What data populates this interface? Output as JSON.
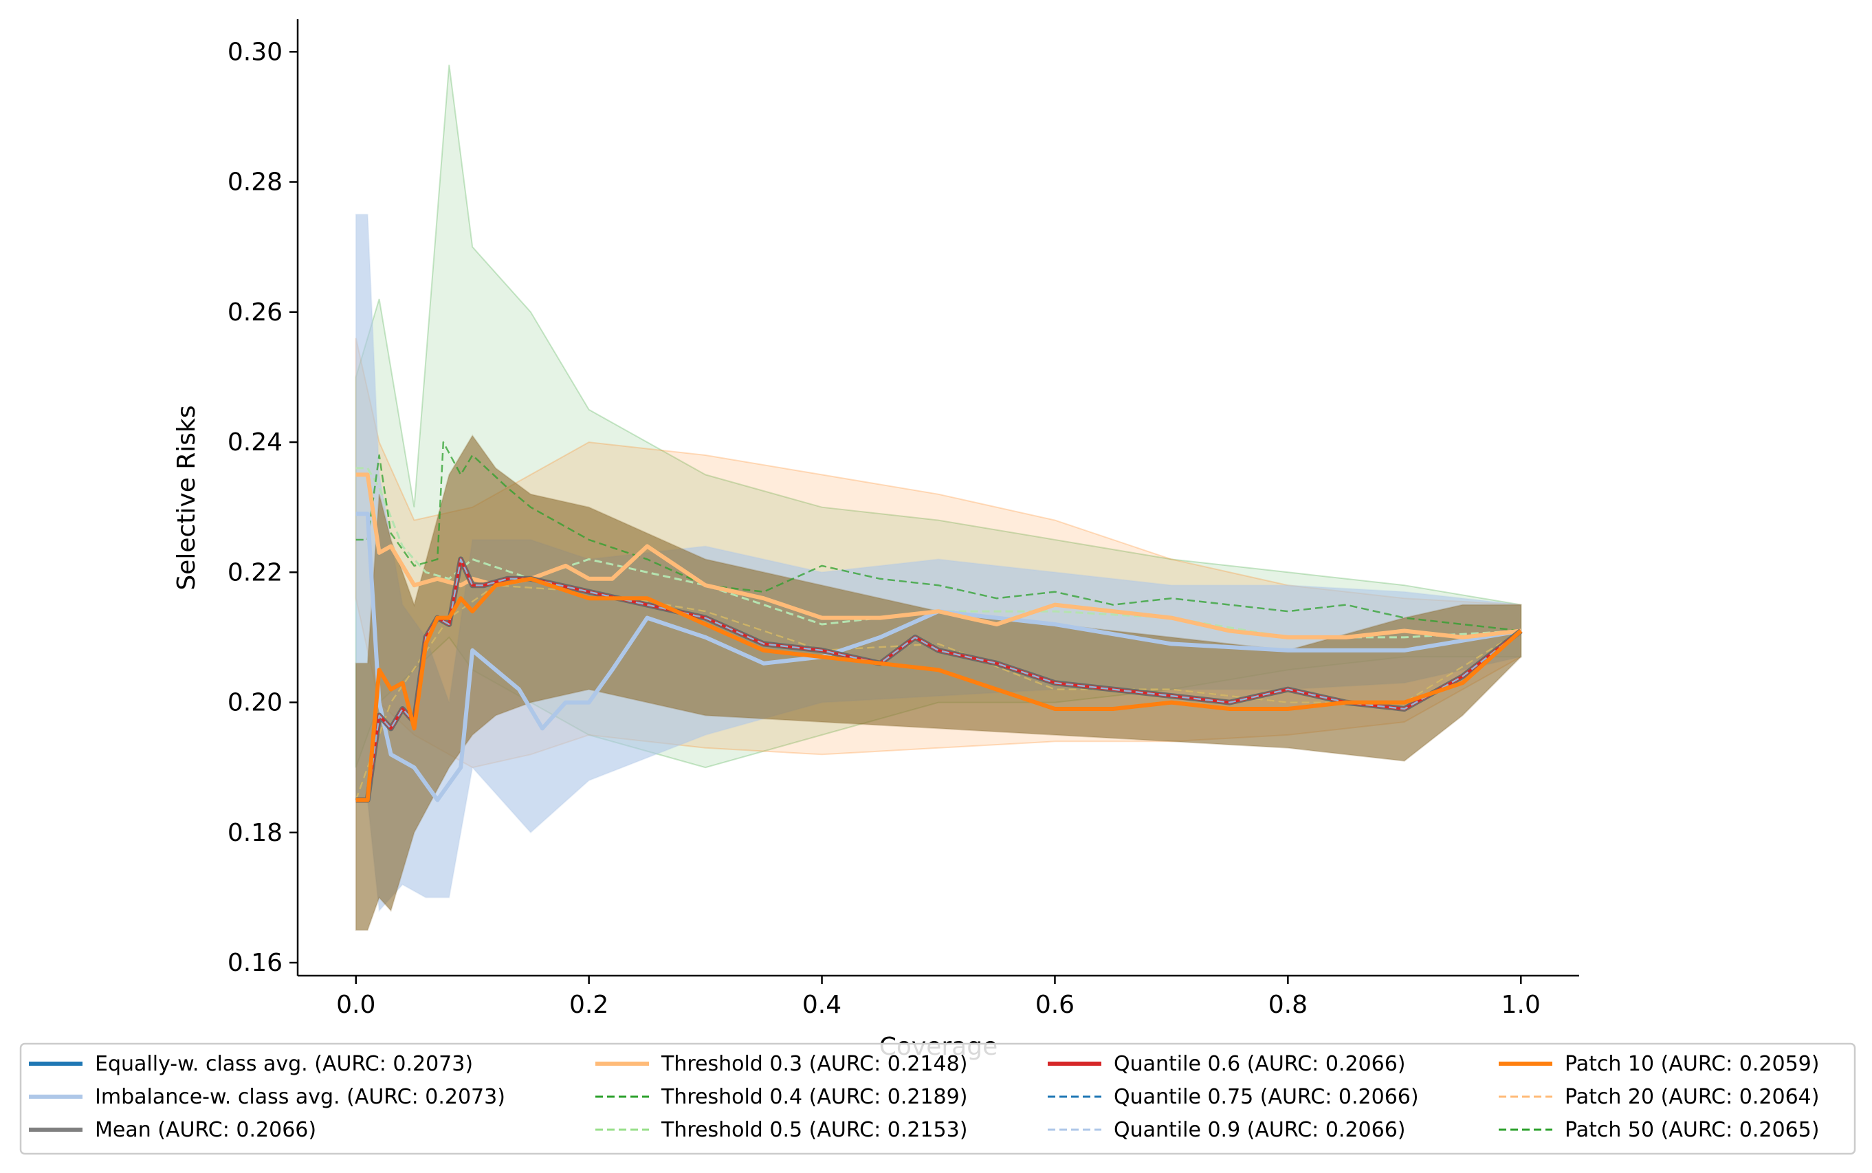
{
  "chart_data": {
    "type": "line",
    "title": "",
    "xlabel": "Coverage",
    "ylabel": "Selective Risks",
    "xlim": [
      -0.05,
      1.05
    ],
    "ylim": [
      0.158,
      0.305
    ],
    "xticks": [
      0.0,
      0.2,
      0.4,
      0.6,
      0.8,
      1.0
    ],
    "yticks": [
      0.16,
      0.18,
      0.2,
      0.22,
      0.24,
      0.26,
      0.28,
      0.3
    ],
    "xtick_labels": [
      "0.0",
      "0.2",
      "0.4",
      "0.6",
      "0.8",
      "1.0"
    ],
    "ytick_labels": [
      "0.16",
      "0.18",
      "0.20",
      "0.22",
      "0.24",
      "0.26",
      "0.28",
      "0.30"
    ],
    "grid": false,
    "legend_placement": "bottom",
    "bands": [
      {
        "name": "Threshold 0.4 band",
        "color": "#2ca02c",
        "opacity": 0.12,
        "x": [
          0.0,
          0.02,
          0.05,
          0.08,
          0.1,
          0.15,
          0.2,
          0.3,
          0.4,
          0.5,
          0.6,
          0.7,
          0.8,
          0.9,
          1.0
        ],
        "upper": [
          0.25,
          0.262,
          0.23,
          0.298,
          0.27,
          0.26,
          0.245,
          0.235,
          0.23,
          0.228,
          0.225,
          0.222,
          0.22,
          0.218,
          0.215
        ],
        "lower": [
          0.19,
          0.2,
          0.205,
          0.21,
          0.205,
          0.2,
          0.195,
          0.19,
          0.195,
          0.2,
          0.2,
          0.202,
          0.205,
          0.207,
          0.207
        ]
      },
      {
        "name": "Threshold 0.3 band",
        "color": "#ff7f0e",
        "opacity": 0.15,
        "x": [
          0.0,
          0.02,
          0.05,
          0.1,
          0.15,
          0.2,
          0.3,
          0.4,
          0.5,
          0.6,
          0.7,
          0.8,
          0.9,
          1.0
        ],
        "upper": [
          0.256,
          0.24,
          0.228,
          0.23,
          0.235,
          0.24,
          0.238,
          0.235,
          0.232,
          0.228,
          0.222,
          0.218,
          0.216,
          0.215
        ],
        "lower": [
          0.216,
          0.2,
          0.195,
          0.19,
          0.192,
          0.195,
          0.193,
          0.192,
          0.193,
          0.194,
          0.194,
          0.195,
          0.197,
          0.207
        ]
      },
      {
        "name": "Imbalance-w. class avg. band",
        "color": "#aec7e8",
        "opacity": 0.6,
        "x": [
          0.0,
          0.01,
          0.02,
          0.04,
          0.06,
          0.08,
          0.1,
          0.15,
          0.2,
          0.3,
          0.4,
          0.5,
          0.6,
          0.7,
          0.8,
          0.9,
          1.0
        ],
        "upper": [
          0.275,
          0.275,
          0.235,
          0.215,
          0.21,
          0.2,
          0.225,
          0.225,
          0.222,
          0.224,
          0.22,
          0.222,
          0.22,
          0.218,
          0.218,
          0.217,
          0.215
        ],
        "lower": [
          0.185,
          0.185,
          0.168,
          0.172,
          0.17,
          0.17,
          0.19,
          0.18,
          0.188,
          0.195,
          0.2,
          0.201,
          0.202,
          0.202,
          0.202,
          0.203,
          0.207
        ]
      },
      {
        "name": "Mean band",
        "color": "#8c6d31",
        "opacity": 0.6,
        "x": [
          0.0,
          0.01,
          0.02,
          0.03,
          0.05,
          0.08,
          0.1,
          0.12,
          0.15,
          0.2,
          0.3,
          0.4,
          0.5,
          0.6,
          0.7,
          0.8,
          0.9,
          0.95,
          1.0
        ],
        "upper": [
          0.206,
          0.206,
          0.232,
          0.225,
          0.215,
          0.235,
          0.241,
          0.236,
          0.232,
          0.23,
          0.222,
          0.218,
          0.214,
          0.212,
          0.21,
          0.208,
          0.213,
          0.215,
          0.215
        ],
        "lower": [
          0.165,
          0.165,
          0.17,
          0.168,
          0.18,
          0.19,
          0.195,
          0.198,
          0.2,
          0.202,
          0.198,
          0.197,
          0.196,
          0.195,
          0.194,
          0.193,
          0.191,
          0.198,
          0.207
        ]
      }
    ],
    "series": [
      {
        "name": "Patch 50 (AURC: 0.2065)",
        "color": "#2ca02c",
        "style": "dashed",
        "width": 2.5,
        "opacity": 0.6,
        "x": [
          0.0,
          0.03,
          0.08,
          0.12,
          0.2,
          0.3,
          0.4,
          0.5,
          0.6,
          0.7,
          0.8,
          0.9,
          1.0
        ],
        "y": [
          0.185,
          0.2,
          0.213,
          0.218,
          0.217,
          0.214,
          0.208,
          0.209,
          0.202,
          0.202,
          0.2,
          0.2,
          0.211
        ]
      },
      {
        "name": "Patch 20 (AURC: 0.2064)",
        "color": "#ffbb78",
        "style": "dashed",
        "width": 2.5,
        "opacity": 0.7,
        "x": [
          0.0,
          0.03,
          0.08,
          0.12,
          0.2,
          0.3,
          0.4,
          0.5,
          0.6,
          0.7,
          0.8,
          0.9,
          1.0
        ],
        "y": [
          0.185,
          0.2,
          0.213,
          0.218,
          0.217,
          0.214,
          0.208,
          0.209,
          0.202,
          0.202,
          0.2,
          0.2,
          0.211
        ]
      },
      {
        "name": "Threshold 0.5 (AURC: 0.2153)",
        "color": "#b5e3b0",
        "style": "dashed",
        "width": 3,
        "opacity": 1,
        "x": [
          0.0,
          0.01,
          0.02,
          0.04,
          0.06,
          0.08,
          0.1,
          0.15,
          0.2,
          0.3,
          0.4,
          0.5,
          0.6,
          0.7,
          0.8,
          0.9,
          1.0
        ],
        "y": [
          0.236,
          0.236,
          0.233,
          0.224,
          0.22,
          0.219,
          0.222,
          0.219,
          0.222,
          0.218,
          0.212,
          0.214,
          0.214,
          0.213,
          0.21,
          0.21,
          0.211
        ]
      },
      {
        "name": "Threshold 0.4 (AURC: 0.2189)",
        "color": "#2ca02c",
        "style": "dashed",
        "width": 2.5,
        "opacity": 0.75,
        "x": [
          0.0,
          0.01,
          0.02,
          0.03,
          0.05,
          0.07,
          0.075,
          0.09,
          0.1,
          0.13,
          0.15,
          0.2,
          0.25,
          0.3,
          0.35,
          0.4,
          0.45,
          0.5,
          0.55,
          0.6,
          0.65,
          0.7,
          0.75,
          0.8,
          0.85,
          0.9,
          0.95,
          1.0
        ],
        "y": [
          0.225,
          0.225,
          0.238,
          0.226,
          0.221,
          0.222,
          0.24,
          0.235,
          0.238,
          0.233,
          0.23,
          0.225,
          0.222,
          0.218,
          0.217,
          0.221,
          0.219,
          0.218,
          0.216,
          0.217,
          0.215,
          0.216,
          0.215,
          0.214,
          0.215,
          0.213,
          0.212,
          0.211
        ]
      },
      {
        "name": "Imbalance-w. class avg. (AURC: 0.2073)",
        "color": "#aec7e8",
        "style": "solid",
        "width": 6,
        "opacity": 1,
        "x": [
          0.0,
          0.01,
          0.02,
          0.03,
          0.05,
          0.07,
          0.09,
          0.1,
          0.12,
          0.14,
          0.16,
          0.18,
          0.2,
          0.22,
          0.25,
          0.3,
          0.35,
          0.4,
          0.45,
          0.5,
          0.55,
          0.6,
          0.7,
          0.8,
          0.9,
          1.0
        ],
        "y": [
          0.229,
          0.229,
          0.2,
          0.192,
          0.19,
          0.185,
          0.19,
          0.208,
          0.205,
          0.202,
          0.196,
          0.2,
          0.2,
          0.205,
          0.213,
          0.21,
          0.206,
          0.207,
          0.21,
          0.214,
          0.213,
          0.212,
          0.209,
          0.208,
          0.208,
          0.211
        ]
      },
      {
        "name": "Equally-w. class avg. (AURC: 0.2073)",
        "color": "#1f77b4",
        "style": "solid",
        "width": 4,
        "opacity": 0.0,
        "x": [
          0.0,
          1.0
        ],
        "y": [
          0.211,
          0.211
        ]
      },
      {
        "name": "Threshold 0.3 (AURC: 0.2148)",
        "color": "#ffbb78",
        "style": "solid",
        "width": 6,
        "opacity": 1,
        "x": [
          0.0,
          0.01,
          0.02,
          0.03,
          0.05,
          0.07,
          0.09,
          0.1,
          0.12,
          0.15,
          0.18,
          0.2,
          0.22,
          0.25,
          0.3,
          0.35,
          0.4,
          0.45,
          0.5,
          0.55,
          0.6,
          0.65,
          0.7,
          0.75,
          0.8,
          0.85,
          0.9,
          0.95,
          1.0
        ],
        "y": [
          0.235,
          0.235,
          0.223,
          0.224,
          0.218,
          0.219,
          0.218,
          0.219,
          0.218,
          0.219,
          0.221,
          0.219,
          0.219,
          0.224,
          0.218,
          0.216,
          0.213,
          0.213,
          0.214,
          0.212,
          0.215,
          0.214,
          0.213,
          0.211,
          0.21,
          0.21,
          0.211,
          0.21,
          0.211
        ]
      },
      {
        "name": "Mean (AURC: 0.2066)",
        "color": "#666666",
        "style": "solid",
        "width": 8,
        "opacity": 0.9,
        "x": [
          0.0,
          0.01,
          0.02,
          0.03,
          0.04,
          0.05,
          0.06,
          0.07,
          0.08,
          0.09,
          0.1,
          0.11,
          0.13,
          0.15,
          0.2,
          0.25,
          0.3,
          0.35,
          0.4,
          0.45,
          0.48,
          0.5,
          0.55,
          0.6,
          0.65,
          0.7,
          0.75,
          0.8,
          0.85,
          0.9,
          0.95,
          1.0
        ],
        "y": [
          0.185,
          0.185,
          0.198,
          0.196,
          0.199,
          0.197,
          0.21,
          0.213,
          0.212,
          0.222,
          0.218,
          0.218,
          0.219,
          0.219,
          0.217,
          0.215,
          0.213,
          0.209,
          0.208,
          0.206,
          0.21,
          0.208,
          0.206,
          0.203,
          0.202,
          0.201,
          0.2,
          0.202,
          0.2,
          0.199,
          0.204,
          0.211
        ]
      },
      {
        "name": "Quantile 0.6 (AURC: 0.2066)",
        "color": "#d62728",
        "style": "solid",
        "width": 4,
        "opacity": 1,
        "x": [
          0.0,
          0.01,
          0.02,
          0.03,
          0.04,
          0.05,
          0.06,
          0.07,
          0.08,
          0.09,
          0.1,
          0.11,
          0.13,
          0.15,
          0.2,
          0.25,
          0.3,
          0.35,
          0.4,
          0.45,
          0.48,
          0.5,
          0.55,
          0.6,
          0.65,
          0.7,
          0.75,
          0.8,
          0.85,
          0.9,
          0.95,
          1.0
        ],
        "y": [
          0.185,
          0.185,
          0.198,
          0.196,
          0.199,
          0.197,
          0.21,
          0.213,
          0.212,
          0.222,
          0.218,
          0.218,
          0.219,
          0.219,
          0.217,
          0.215,
          0.213,
          0.209,
          0.208,
          0.206,
          0.21,
          0.208,
          0.206,
          0.203,
          0.202,
          0.201,
          0.2,
          0.202,
          0.2,
          0.199,
          0.204,
          0.211
        ]
      },
      {
        "name": "Quantile 0.75 (AURC: 0.2066)",
        "color": "#8fb4d6",
        "style": "dashed",
        "width": 2.5,
        "opacity": 1,
        "x": [
          0.0,
          0.01,
          0.02,
          0.03,
          0.04,
          0.05,
          0.06,
          0.07,
          0.08,
          0.09,
          0.1,
          0.11,
          0.13,
          0.15,
          0.2,
          0.25,
          0.3,
          0.35,
          0.4,
          0.45,
          0.48,
          0.5,
          0.55,
          0.6,
          0.65,
          0.7,
          0.75,
          0.8,
          0.85,
          0.9,
          0.95,
          1.0
        ],
        "y": [
          0.185,
          0.185,
          0.198,
          0.196,
          0.199,
          0.197,
          0.21,
          0.213,
          0.212,
          0.222,
          0.218,
          0.218,
          0.219,
          0.219,
          0.217,
          0.215,
          0.213,
          0.209,
          0.208,
          0.206,
          0.21,
          0.208,
          0.206,
          0.203,
          0.202,
          0.201,
          0.2,
          0.202,
          0.2,
          0.199,
          0.204,
          0.211
        ]
      },
      {
        "name": "Patch 10 (AURC: 0.2059)",
        "color": "#ff7f0e",
        "style": "solid",
        "width": 6,
        "opacity": 1,
        "x": [
          0.0,
          0.01,
          0.02,
          0.03,
          0.04,
          0.05,
          0.06,
          0.07,
          0.08,
          0.09,
          0.1,
          0.12,
          0.15,
          0.2,
          0.25,
          0.3,
          0.35,
          0.4,
          0.45,
          0.5,
          0.55,
          0.6,
          0.65,
          0.7,
          0.75,
          0.8,
          0.85,
          0.9,
          0.95,
          1.0
        ],
        "y": [
          0.185,
          0.185,
          0.205,
          0.202,
          0.203,
          0.196,
          0.209,
          0.213,
          0.213,
          0.216,
          0.214,
          0.218,
          0.219,
          0.216,
          0.216,
          0.212,
          0.208,
          0.207,
          0.206,
          0.205,
          0.202,
          0.199,
          0.199,
          0.2,
          0.199,
          0.199,
          0.2,
          0.2,
          0.203,
          0.211
        ]
      }
    ],
    "legend": [
      {
        "label": "Equally-w. class avg. (AURC: 0.2073)",
        "color": "#1f77b4",
        "style": "solid"
      },
      {
        "label": "Imbalance-w. class avg. (AURC: 0.2073)",
        "color": "#aec7e8",
        "style": "solid"
      },
      {
        "label": "Mean (AURC: 0.2066)",
        "color": "#7f7f7f",
        "style": "solid"
      },
      {
        "label": "Threshold 0.3 (AURC: 0.2148)",
        "color": "#ffbb78",
        "style": "solid"
      },
      {
        "label": "Threshold 0.4 (AURC: 0.2189)",
        "color": "#2ca02c",
        "style": "dashed"
      },
      {
        "label": "Threshold 0.5 (AURC: 0.2153)",
        "color": "#98df8a",
        "style": "dashed"
      },
      {
        "label": "Quantile 0.6 (AURC: 0.2066)",
        "color": "#d62728",
        "style": "solid"
      },
      {
        "label": "Quantile 0.75 (AURC: 0.2066)",
        "color": "#1f77b4",
        "style": "dashed"
      },
      {
        "label": "Quantile 0.9 (AURC: 0.2066)",
        "color": "#aec7e8",
        "style": "dashed"
      },
      {
        "label": "Patch 10 (AURC: 0.2059)",
        "color": "#ff7f0e",
        "style": "solid"
      },
      {
        "label": "Patch 20 (AURC: 0.2064)",
        "color": "#ffbb78",
        "style": "dashed"
      },
      {
        "label": "Patch 50 (AURC: 0.2065)",
        "color": "#2ca02c",
        "style": "dashed"
      }
    ]
  }
}
